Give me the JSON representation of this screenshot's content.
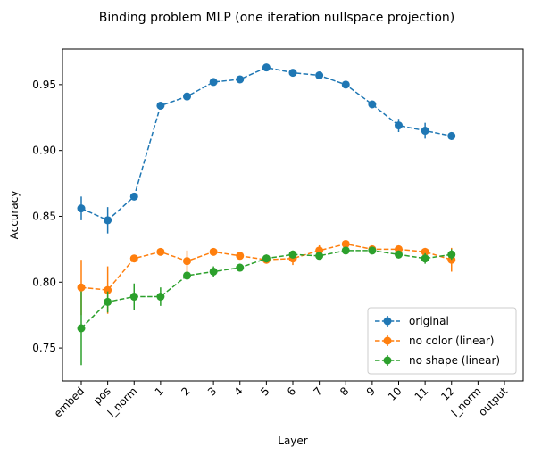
{
  "chart_data": {
    "type": "line",
    "title": "Binding problem MLP (one iteration nullspace projection)",
    "xlabel": "Layer",
    "ylabel": "Accuracy",
    "categories": [
      "embed",
      "pos",
      "l_norm",
      "1",
      "2",
      "3",
      "4",
      "5",
      "6",
      "7",
      "8",
      "9",
      "10",
      "11",
      "12",
      "l_norm",
      "output"
    ],
    "ylim": [
      0.725,
      0.977
    ],
    "yticks": [
      0.75,
      {
        "value": 0.8,
        "label": "0.80"
      },
      0.85,
      {
        "value": 0.9,
        "label": "0.90"
      },
      0.95
    ],
    "legend": "lower right",
    "linestyle": "dashed",
    "series": [
      {
        "name": "original",
        "color": "#1f77b4",
        "values": [
          0.856,
          0.847,
          0.865,
          0.934,
          0.941,
          0.952,
          0.954,
          0.963,
          0.959,
          0.957,
          0.95,
          0.935,
          0.919,
          0.915,
          0.911,
          null,
          null
        ],
        "errors": [
          0.009,
          0.01,
          0.002,
          0.002,
          0.002,
          0.002,
          0.002,
          0.002,
          0.002,
          0.002,
          0.002,
          0.002,
          0.005,
          0.006,
          0.003,
          null,
          null
        ]
      },
      {
        "name": "no color (linear)",
        "color": "#ff7f0e",
        "values": [
          0.796,
          0.794,
          0.818,
          0.823,
          0.816,
          0.823,
          0.82,
          0.817,
          0.818,
          0.824,
          0.829,
          0.825,
          0.825,
          0.823,
          0.817,
          null,
          null
        ],
        "errors": [
          0.021,
          0.018,
          0.002,
          0.002,
          0.008,
          0.002,
          0.002,
          0.002,
          0.005,
          0.004,
          0.002,
          0.002,
          0.002,
          0.003,
          0.009,
          null,
          null
        ]
      },
      {
        "name": "no shape (linear)",
        "color": "#2ca02c",
        "values": [
          0.765,
          0.785,
          0.789,
          0.789,
          0.805,
          0.808,
          0.811,
          0.818,
          0.821,
          0.82,
          0.824,
          0.824,
          0.821,
          0.818,
          0.821,
          null,
          null
        ],
        "errors": [
          0.028,
          0.008,
          0.01,
          0.007,
          0.003,
          0.004,
          0.003,
          0.003,
          0.003,
          0.002,
          0.002,
          0.002,
          0.003,
          0.004,
          0.004,
          null,
          null
        ]
      }
    ]
  }
}
